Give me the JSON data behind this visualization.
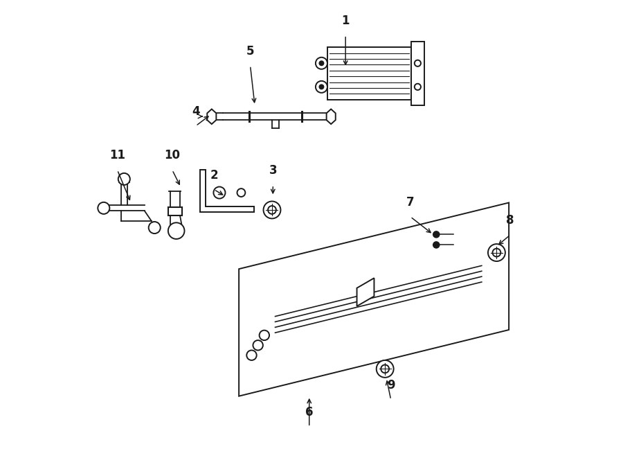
{
  "bg_color": "#ffffff",
  "line_color": "#1a1a1a",
  "fig_width": 9.0,
  "fig_height": 6.61,
  "parts_info": {
    "1": [
      0.575,
      0.945,
      0.575,
      0.855
    ],
    "2": [
      0.285,
      0.605,
      0.31,
      0.572
    ],
    "3": [
      0.415,
      0.615,
      0.415,
      0.572
    ],
    "4": [
      0.245,
      0.745,
      0.278,
      0.752
    ],
    "5": [
      0.365,
      0.878,
      0.375,
      0.772
    ],
    "6": [
      0.495,
      0.082,
      0.495,
      0.132
    ],
    "7": [
      0.718,
      0.545,
      0.768,
      0.488
    ],
    "8": [
      0.938,
      0.505,
      0.908,
      0.462
    ],
    "9": [
      0.675,
      0.142,
      0.665,
      0.172
    ],
    "10": [
      0.193,
      0.648,
      0.212,
      0.592
    ],
    "11": [
      0.072,
      0.648,
      0.102,
      0.558
    ]
  }
}
